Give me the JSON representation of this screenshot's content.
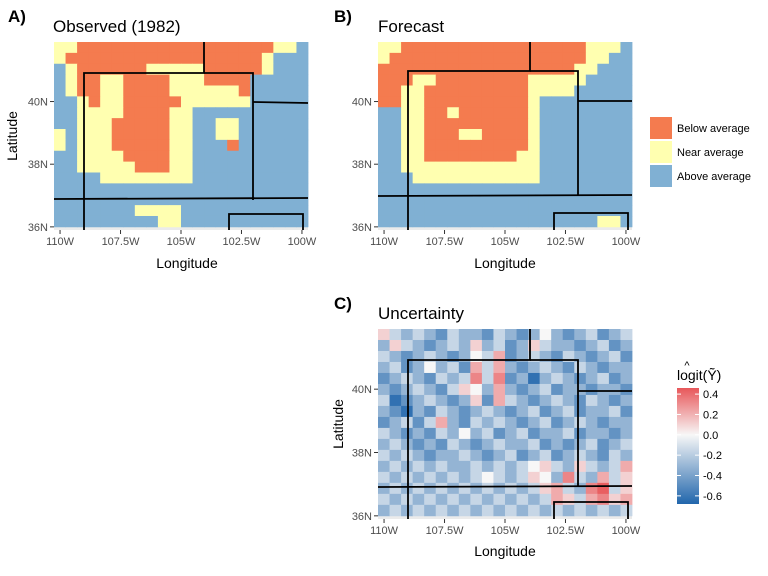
{
  "panels": [
    {
      "tag": "A)",
      "title": "Observed (1982)",
      "xlabel": "Longitude",
      "ylabel": "Latitude",
      "x_ticks": [
        "110W",
        "107.5W",
        "105W",
        "102.5W",
        "100W"
      ],
      "y_ticks": [
        "36N",
        "38N",
        "40N"
      ]
    },
    {
      "tag": "B)",
      "title": "Forecast",
      "xlabel": "Longitude",
      "ylabel": "Latitude",
      "x_ticks": [
        "110W",
        "107.5W",
        "105W",
        "102.5W",
        "100W"
      ],
      "y_ticks": [
        "36N",
        "38N",
        "40N"
      ]
    },
    {
      "tag": "C)",
      "title": "Uncertainty",
      "xlabel": "Longitude",
      "ylabel": "Latitude",
      "x_ticks": [
        "110W",
        "107.5W",
        "105W",
        "102.5W",
        "100W"
      ],
      "y_ticks": [
        "36N",
        "38N",
        "40N"
      ]
    }
  ],
  "legend_categories": {
    "items": [
      "Below average",
      "Near average",
      "Above average"
    ],
    "colors": [
      "#f47b4f",
      "#ffffb0",
      "#80b0d3"
    ]
  },
  "legend_uncertainty": {
    "title_top": "^",
    "title": "logit(Ỹ)",
    "ticks": [
      "0.4",
      "0.2",
      "0.0",
      "-0.2",
      "-0.4",
      "-0.6"
    ],
    "tick_values": [
      0.4,
      0.2,
      0.0,
      -0.2,
      -0.4,
      -0.6
    ],
    "range": [
      -0.68,
      0.46
    ],
    "colors": {
      "low": "#2166ac",
      "mid": "#f7f7f7",
      "high": "#e8575a"
    }
  },
  "chart_data": [
    {
      "panel": "A",
      "type": "heatmap",
      "title": "Observed (1982)",
      "xlabel": "Longitude",
      "ylabel": "Latitude",
      "xlim": [
        -110.25,
        -99.75
      ],
      "ylim": [
        35.9,
        41.9
      ],
      "value_key": {
        "B": "Below average",
        "N": "Near average",
        "A": "Above average"
      },
      "rows_north_to_south": [
        "NNBBBBBBBBBBBBBBBBBNNA",
        "NBBBBBBBBBBBBBBBBBNAAA",
        "ANBBBBBBNNNNNBBBBBNAAA",
        "ANBBNNBBBBNNNBBBBAAAAA",
        "ANBBNNBBBBNNNNNNBAAAAA",
        "AANBNNBBBBBNNNNNNAAAAA",
        "AANNNNBBBBNNAAAAAAAAAA",
        "AANNNBBBBBNNAANNAAAAAA",
        "NANNNBBBBBNNAANNAAAAAA",
        "NANNNBBBBBNNAAABAAAAAA",
        "AANNNNBBBBNNAAAAAAAAAA",
        "AANNNNNBBBNNAAAAAAAAAA",
        "AAAANNNNNNNNAAAAAAAAAA",
        "AAAAAAAAAAAAAAAAAAAAAA",
        "AAAAAAAAAAAAAAAAAAAAAA",
        "AAAAAAANNNNAAAAAAAAAAA",
        "AAAAAAAAANNAAAAAAAAAAA"
      ]
    },
    {
      "panel": "B",
      "type": "heatmap",
      "title": "Forecast",
      "xlabel": "Longitude",
      "ylabel": "Latitude",
      "xlim": [
        -110.25,
        -99.75
      ],
      "ylim": [
        35.9,
        41.9
      ],
      "value_key": {
        "B": "Below average",
        "N": "Near average",
        "A": "Above average"
      },
      "rows_north_to_south": [
        "NNBBBBBBBBBBBBBBBBNNNA",
        "NBBBBBBBBBBBBBBBBBNNAA",
        "BBBBBBBBBBBBBBBBBNNAAA",
        "BBBNNBBBBBBBBNNNNNAAAA",
        "BBNNBBBBBBBBBNNNNAAAAA",
        "BBNNBBBBBBBBBNAAAAAAAA",
        "AANNBBNBBBBBBNAAAAAAAA",
        "AANNBBBBBBBBBNAAAAAAAA",
        "AANNBBBNNBBBBNAAAAAAAA",
        "AANNBBBBBBBBBNAAAAAAAA",
        "AANNBBBBBBBBNNAAAAAAAA",
        "AANNNNNNNNNNNNAAAAAAAA",
        "AAANNNNNNNNNNNAAAAAAAA",
        "AAAAAAAAAAAAAAAAAAAAAA",
        "AAAAAAAAAAAAAAAAAAAAAA",
        "AAAAAAAAAAAAAAAAAAAAAA",
        "AAAAAAAAAAAAAAAAAAANNA"
      ]
    },
    {
      "panel": "C",
      "type": "heatmap",
      "title": "Uncertainty",
      "xlabel": "Longitude",
      "ylabel": "Latitude",
      "xlim": [
        -110.25,
        -99.75
      ],
      "ylim": [
        35.9,
        41.9
      ],
      "value_key": {
        "-4": -0.6,
        "-3": -0.45,
        "-2": -0.3,
        "-1": -0.15,
        "0": 0.0,
        "1": 0.1,
        "2": 0.2,
        "3": 0.3,
        "4": 0.4
      },
      "rows_north_to_south": [
        [
          1,
          -1,
          -2,
          -1,
          -2,
          -3,
          -1,
          -2,
          -2,
          -3,
          -1,
          -2,
          -3,
          -2,
          0,
          -2,
          -3,
          -2,
          -1,
          -3,
          -2,
          -1
        ],
        [
          -2,
          1,
          -1,
          -2,
          -3,
          -2,
          -1,
          -2,
          1,
          -2,
          -1,
          -3,
          -2,
          1,
          -1,
          -2,
          -2,
          -3,
          -2,
          -1,
          -3,
          -2
        ],
        [
          -1,
          -2,
          -3,
          -2,
          -1,
          -2,
          -3,
          -2,
          0,
          -1,
          2,
          -3,
          -2,
          -1,
          -2,
          -3,
          -1,
          -2,
          -3,
          -2,
          -1,
          -3
        ],
        [
          -2,
          -1,
          -3,
          -2,
          0,
          -2,
          -1,
          -3,
          2,
          -1,
          2,
          -2,
          -3,
          -2,
          -1,
          -2,
          -3,
          -1,
          -2,
          -3,
          -2,
          -2
        ],
        [
          -3,
          -2,
          -1,
          -2,
          -3,
          -1,
          -2,
          -1,
          3,
          -1,
          3,
          -3,
          -2,
          -4,
          -2,
          -1,
          -2,
          -3,
          -2,
          -1,
          -3,
          -2
        ],
        [
          -2,
          -3,
          -2,
          -1,
          -2,
          -3,
          -1,
          1,
          0,
          -2,
          2,
          -2,
          -3,
          -2,
          -1,
          -3,
          -2,
          -2,
          -3,
          -2,
          -2,
          -3
        ],
        [
          -1,
          -4,
          -3,
          -2,
          -1,
          -2,
          -3,
          -2,
          1,
          -3,
          2,
          -1,
          -2,
          -3,
          -2,
          -1,
          -2,
          -3,
          -1,
          -2,
          -3,
          -2
        ],
        [
          -2,
          -3,
          -4,
          -2,
          -3,
          -1,
          -2,
          -3,
          -2,
          -1,
          -2,
          -3,
          -2,
          -1,
          -3,
          -2,
          -1,
          -3,
          -2,
          -2,
          -1,
          -3
        ],
        [
          -3,
          -2,
          -1,
          -3,
          -1,
          2,
          -2,
          -3,
          -1,
          -2,
          -1,
          -2,
          -3,
          -2,
          -1,
          -3,
          -2,
          -1,
          -2,
          -3,
          -2,
          -2
        ],
        [
          -1,
          -2,
          -3,
          -2,
          -3,
          -1,
          -2,
          0,
          -2,
          -1,
          -3,
          -2,
          -1,
          -3,
          -2,
          -2,
          -1,
          -3,
          -2,
          -2,
          -3,
          -2
        ],
        [
          -2,
          -1,
          -2,
          -3,
          -2,
          -3,
          -1,
          -2,
          -3,
          -2,
          -1,
          -2,
          -2,
          -1,
          -3,
          -2,
          -3,
          -2,
          -1,
          -3,
          -2,
          -1
        ],
        [
          -1,
          -2,
          -1,
          -2,
          -3,
          -2,
          -2,
          -1,
          -2,
          -3,
          -2,
          -1,
          -3,
          -2,
          -1,
          -3,
          -2,
          -1,
          -2,
          -3,
          -1,
          -2
        ],
        [
          -2,
          -1,
          -2,
          -1,
          -2,
          -1,
          -2,
          -2,
          -1,
          -2,
          -1,
          -2,
          -1,
          0,
          1,
          -1,
          -2,
          1,
          -1,
          -2,
          -1,
          2
        ],
        [
          -1,
          -2,
          -1,
          -2,
          -1,
          -2,
          -1,
          -2,
          -1,
          0,
          -1,
          -2,
          -1,
          1,
          0,
          -2,
          3,
          -1,
          -2,
          2,
          -1,
          1
        ],
        [
          -2,
          -1,
          -2,
          -1,
          -2,
          -1,
          -2,
          -1,
          -2,
          -1,
          -2,
          -1,
          -2,
          -1,
          1,
          2,
          -1,
          -2,
          3,
          4,
          -1,
          1
        ],
        [
          -1,
          -2,
          -1,
          -2,
          -1,
          -2,
          -1,
          -2,
          -1,
          -2,
          -1,
          -2,
          -1,
          -2,
          -1,
          2,
          1,
          -1,
          2,
          3,
          1,
          2
        ],
        [
          -2,
          -1,
          -2,
          -1,
          -2,
          -1,
          -2,
          -1,
          -2,
          -1,
          -2,
          -1,
          -2,
          -1,
          -2,
          -1,
          -2,
          -1,
          -2,
          -1,
          -2,
          -1
        ]
      ]
    }
  ]
}
